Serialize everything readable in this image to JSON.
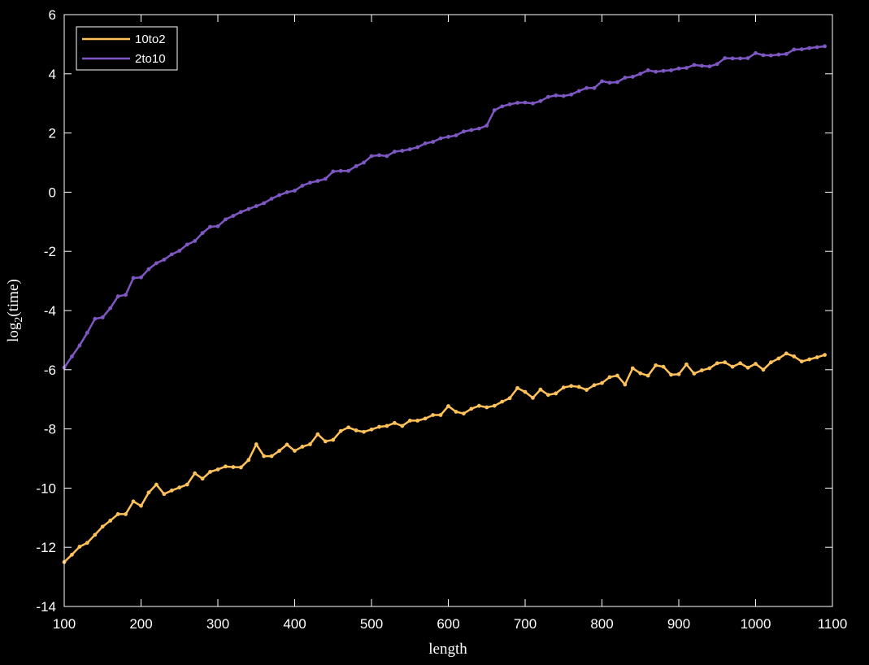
{
  "chart_data": {
    "type": "line",
    "title": "",
    "xlabel": "length",
    "ylabel_base": "log",
    "ylabel_sub": "2",
    "ylabel_rest": "(time)",
    "xlim": [
      100,
      1100
    ],
    "ylim": [
      -14,
      6
    ],
    "xticks": [
      100,
      200,
      300,
      400,
      500,
      600,
      700,
      800,
      900,
      1000,
      1100
    ],
    "yticks": [
      -14,
      -12,
      -10,
      -8,
      -6,
      -4,
      -2,
      0,
      2,
      4,
      6
    ],
    "grid": false,
    "legend_position": "top-left",
    "x": [
      100,
      110,
      120,
      130,
      140,
      150,
      160,
      170,
      180,
      190,
      200,
      210,
      220,
      230,
      240,
      250,
      260,
      270,
      280,
      290,
      300,
      310,
      320,
      330,
      340,
      350,
      360,
      370,
      380,
      390,
      400,
      410,
      420,
      430,
      440,
      450,
      460,
      470,
      480,
      490,
      500,
      510,
      520,
      530,
      540,
      550,
      560,
      570,
      580,
      590,
      600,
      610,
      620,
      630,
      640,
      650,
      660,
      670,
      680,
      690,
      700,
      710,
      720,
      730,
      740,
      750,
      760,
      770,
      780,
      790,
      800,
      810,
      820,
      830,
      840,
      850,
      860,
      870,
      880,
      890,
      900,
      910,
      920,
      930,
      940,
      950,
      960,
      970,
      980,
      990,
      1000,
      1010,
      1020,
      1030,
      1040,
      1050,
      1060,
      1070,
      1080,
      1090
    ],
    "series": [
      {
        "name": "10to2",
        "color": "#ffc15a",
        "values": [
          -12.5,
          -12.25,
          -11.98,
          -11.85,
          -11.58,
          -11.3,
          -11.1,
          -10.88,
          -10.88,
          -10.45,
          -10.6,
          -10.15,
          -9.88,
          -10.2,
          -10.08,
          -9.98,
          -9.88,
          -9.5,
          -9.68,
          -9.45,
          -9.37,
          -9.27,
          -9.29,
          -9.3,
          -9.05,
          -8.52,
          -8.92,
          -8.92,
          -8.74,
          -8.53,
          -8.74,
          -8.6,
          -8.52,
          -8.18,
          -8.42,
          -8.37,
          -8.07,
          -7.95,
          -8.05,
          -8.1,
          -8.02,
          -7.93,
          -7.9,
          -7.8,
          -7.9,
          -7.72,
          -7.72,
          -7.65,
          -7.53,
          -7.53,
          -7.23,
          -7.42,
          -7.48,
          -7.32,
          -7.22,
          -7.27,
          -7.22,
          -7.08,
          -6.96,
          -6.62,
          -6.75,
          -6.95,
          -6.67,
          -6.85,
          -6.8,
          -6.6,
          -6.55,
          -6.58,
          -6.68,
          -6.52,
          -6.45,
          -6.25,
          -6.2,
          -6.5,
          -5.95,
          -6.12,
          -6.2,
          -5.85,
          -5.9,
          -6.17,
          -6.15,
          -5.82,
          -6.13,
          -6.02,
          -5.95,
          -5.78,
          -5.75,
          -5.9,
          -5.78,
          -5.93,
          -5.8,
          -6.0,
          -5.75,
          -5.62,
          -5.45,
          -5.55,
          -5.72,
          -5.65,
          -5.58,
          -5.5
        ]
      },
      {
        "name": "2to10",
        "color": "#7e57c2",
        "values": [
          -5.93,
          -5.55,
          -5.18,
          -4.75,
          -4.28,
          -4.23,
          -3.92,
          -3.52,
          -3.47,
          -2.9,
          -2.88,
          -2.6,
          -2.4,
          -2.28,
          -2.1,
          -1.98,
          -1.77,
          -1.65,
          -1.38,
          -1.17,
          -1.15,
          -0.92,
          -0.8,
          -0.67,
          -0.57,
          -0.47,
          -0.37,
          -0.22,
          -0.1,
          0.0,
          0.05,
          0.22,
          0.32,
          0.38,
          0.45,
          0.7,
          0.72,
          0.72,
          0.88,
          1.0,
          1.22,
          1.25,
          1.22,
          1.37,
          1.4,
          1.45,
          1.52,
          1.65,
          1.7,
          1.82,
          1.87,
          1.92,
          2.05,
          2.1,
          2.15,
          2.25,
          2.77,
          2.9,
          2.97,
          3.02,
          3.03,
          3.0,
          3.08,
          3.22,
          3.27,
          3.25,
          3.3,
          3.42,
          3.52,
          3.52,
          3.75,
          3.7,
          3.72,
          3.87,
          3.9,
          4.0,
          4.12,
          4.07,
          4.1,
          4.12,
          4.18,
          4.2,
          4.3,
          4.27,
          4.25,
          4.33,
          4.53,
          4.52,
          4.52,
          4.53,
          4.7,
          4.63,
          4.62,
          4.65,
          4.67,
          4.82,
          4.83,
          4.87,
          4.9,
          4.93
        ]
      }
    ]
  }
}
